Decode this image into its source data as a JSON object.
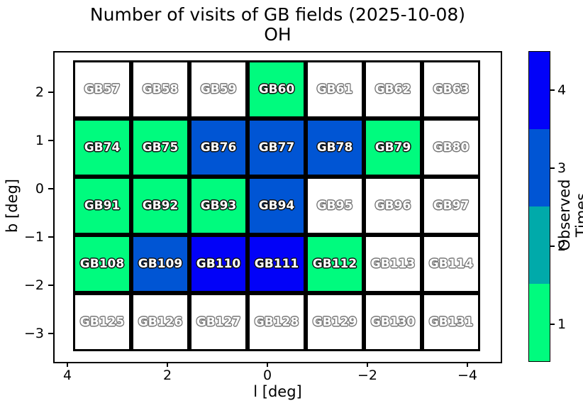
{
  "chart_data": {
    "type": "heatmap",
    "title": "Number of visits of GB fields (2025-10-08)",
    "subtitle": "OH",
    "xlabel": "l [deg]",
    "ylabel": "b [deg]",
    "x_tick_labels": [
      "4",
      "2",
      "0",
      "−2",
      "−4"
    ],
    "y_tick_labels": [
      "2",
      "1",
      "0",
      "−1",
      "−2",
      "−3"
    ],
    "xlim": [
      4.3,
      -4.7
    ],
    "ylim": [
      -3.55,
      2.85
    ],
    "grid_shape": {
      "rows": 5,
      "cols": 7
    },
    "colorbar": {
      "label": "Observed Times",
      "tick_labels": [
        "1",
        "2",
        "3",
        "4"
      ],
      "bin_colors": [
        "#00fb7e",
        "#00aaaa",
        "#0055d4",
        "#0202f8"
      ]
    },
    "value_colors": [
      "#ffffff",
      "#00fb7e",
      "#00aaaa",
      "#0055d4",
      "#0202f8"
    ],
    "rows": [
      {
        "fields": [
          {
            "id": "GB57",
            "visits": 0
          },
          {
            "id": "GB58",
            "visits": 0
          },
          {
            "id": "GB59",
            "visits": 0
          },
          {
            "id": "GB60",
            "visits": 1
          },
          {
            "id": "GB61",
            "visits": 0
          },
          {
            "id": "GB62",
            "visits": 0
          },
          {
            "id": "GB63",
            "visits": 0
          }
        ]
      },
      {
        "fields": [
          {
            "id": "GB74",
            "visits": 1
          },
          {
            "id": "GB75",
            "visits": 1
          },
          {
            "id": "GB76",
            "visits": 3
          },
          {
            "id": "GB77",
            "visits": 3
          },
          {
            "id": "GB78",
            "visits": 3
          },
          {
            "id": "GB79",
            "visits": 1
          },
          {
            "id": "GB80",
            "visits": 0
          }
        ]
      },
      {
        "fields": [
          {
            "id": "GB91",
            "visits": 1
          },
          {
            "id": "GB92",
            "visits": 1
          },
          {
            "id": "GB93",
            "visits": 1
          },
          {
            "id": "GB94",
            "visits": 3
          },
          {
            "id": "GB95",
            "visits": 0
          },
          {
            "id": "GB96",
            "visits": 0
          },
          {
            "id": "GB97",
            "visits": 0
          }
        ]
      },
      {
        "fields": [
          {
            "id": "GB108",
            "visits": 1
          },
          {
            "id": "GB109",
            "visits": 3
          },
          {
            "id": "GB110",
            "visits": 4
          },
          {
            "id": "GB111",
            "visits": 4
          },
          {
            "id": "GB112",
            "visits": 1
          },
          {
            "id": "GB113",
            "visits": 0
          },
          {
            "id": "GB114",
            "visits": 0
          }
        ]
      },
      {
        "fields": [
          {
            "id": "GB125",
            "visits": 0
          },
          {
            "id": "GB126",
            "visits": 0
          },
          {
            "id": "GB127",
            "visits": 0
          },
          {
            "id": "GB128",
            "visits": 0
          },
          {
            "id": "GB129",
            "visits": 0
          },
          {
            "id": "GB130",
            "visits": 0
          },
          {
            "id": "GB131",
            "visits": 0
          }
        ]
      }
    ]
  }
}
